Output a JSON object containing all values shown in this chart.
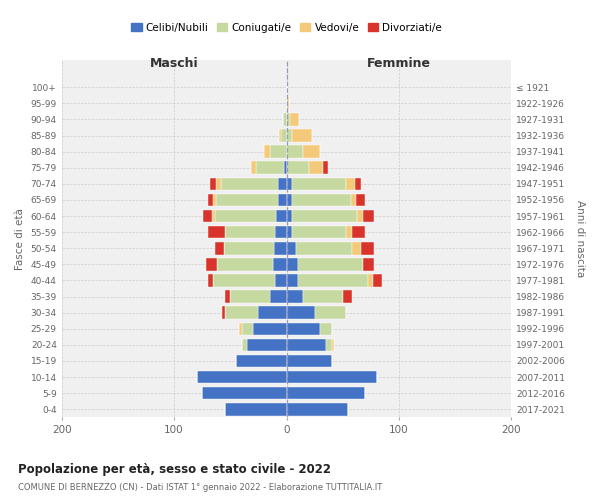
{
  "age_groups": [
    "0-4",
    "5-9",
    "10-14",
    "15-19",
    "20-24",
    "25-29",
    "30-34",
    "35-39",
    "40-44",
    "45-49",
    "50-54",
    "55-59",
    "60-64",
    "65-69",
    "70-74",
    "75-79",
    "80-84",
    "85-89",
    "90-94",
    "95-99",
    "100+"
  ],
  "birth_years": [
    "2017-2021",
    "2012-2016",
    "2007-2011",
    "2002-2006",
    "1997-2001",
    "1992-1996",
    "1987-1991",
    "1982-1986",
    "1977-1981",
    "1972-1976",
    "1967-1971",
    "1962-1966",
    "1957-1961",
    "1952-1956",
    "1947-1951",
    "1942-1946",
    "1937-1941",
    "1932-1936",
    "1927-1931",
    "1922-1926",
    "≤ 1921"
  ],
  "maschi": {
    "celibi": [
      55,
      75,
      80,
      45,
      35,
      30,
      25,
      15,
      10,
      12,
      11,
      10,
      9,
      8,
      8,
      2,
      0,
      0,
      0,
      0,
      0
    ],
    "coniugati": [
      0,
      0,
      0,
      0,
      5,
      10,
      30,
      35,
      55,
      50,
      45,
      45,
      55,
      55,
      50,
      25,
      15,
      5,
      3,
      0,
      0
    ],
    "vedovi": [
      0,
      0,
      0,
      0,
      0,
      2,
      0,
      0,
      0,
      0,
      0,
      0,
      2,
      2,
      5,
      5,
      5,
      2,
      0,
      0,
      0
    ],
    "divorziati": [
      0,
      0,
      0,
      0,
      0,
      0,
      2,
      5,
      5,
      10,
      8,
      15,
      8,
      5,
      5,
      0,
      0,
      0,
      0,
      0,
      0
    ]
  },
  "femmine": {
    "nubili": [
      55,
      70,
      80,
      40,
      35,
      30,
      25,
      15,
      10,
      10,
      8,
      5,
      5,
      5,
      5,
      0,
      0,
      0,
      0,
      0,
      0
    ],
    "coniugate": [
      0,
      0,
      0,
      0,
      5,
      10,
      28,
      35,
      62,
      58,
      50,
      48,
      58,
      52,
      48,
      20,
      15,
      5,
      3,
      0,
      0
    ],
    "vedove": [
      0,
      0,
      0,
      0,
      2,
      0,
      0,
      0,
      5,
      0,
      8,
      5,
      5,
      5,
      8,
      12,
      15,
      18,
      8,
      2,
      0
    ],
    "divorziate": [
      0,
      0,
      0,
      0,
      0,
      0,
      0,
      8,
      8,
      10,
      12,
      12,
      10,
      8,
      5,
      5,
      0,
      0,
      0,
      0,
      0
    ]
  },
  "colors": {
    "celibi": "#4472c4",
    "coniugati": "#c5d9a0",
    "vedovi": "#f5c97a",
    "divorziati": "#d9342b"
  },
  "title": "Popolazione per età, sesso e stato civile - 2022",
  "subtitle": "COMUNE DI BERNEZZO (CN) - Dati ISTAT 1° gennaio 2022 - Elaborazione TUTTITALIA.IT",
  "label_maschi": "Maschi",
  "label_femmine": "Femmine",
  "ylabel_left": "Fasce di età",
  "ylabel_right": "Anni di nascita",
  "legend_labels": [
    "Celibi/Nubili",
    "Coniugati/e",
    "Vedovi/e",
    "Divorziati/e"
  ],
  "xlim": 200,
  "background_color": "#ffffff",
  "plot_bg_color": "#f0f0f0",
  "grid_color": "#cccccc"
}
